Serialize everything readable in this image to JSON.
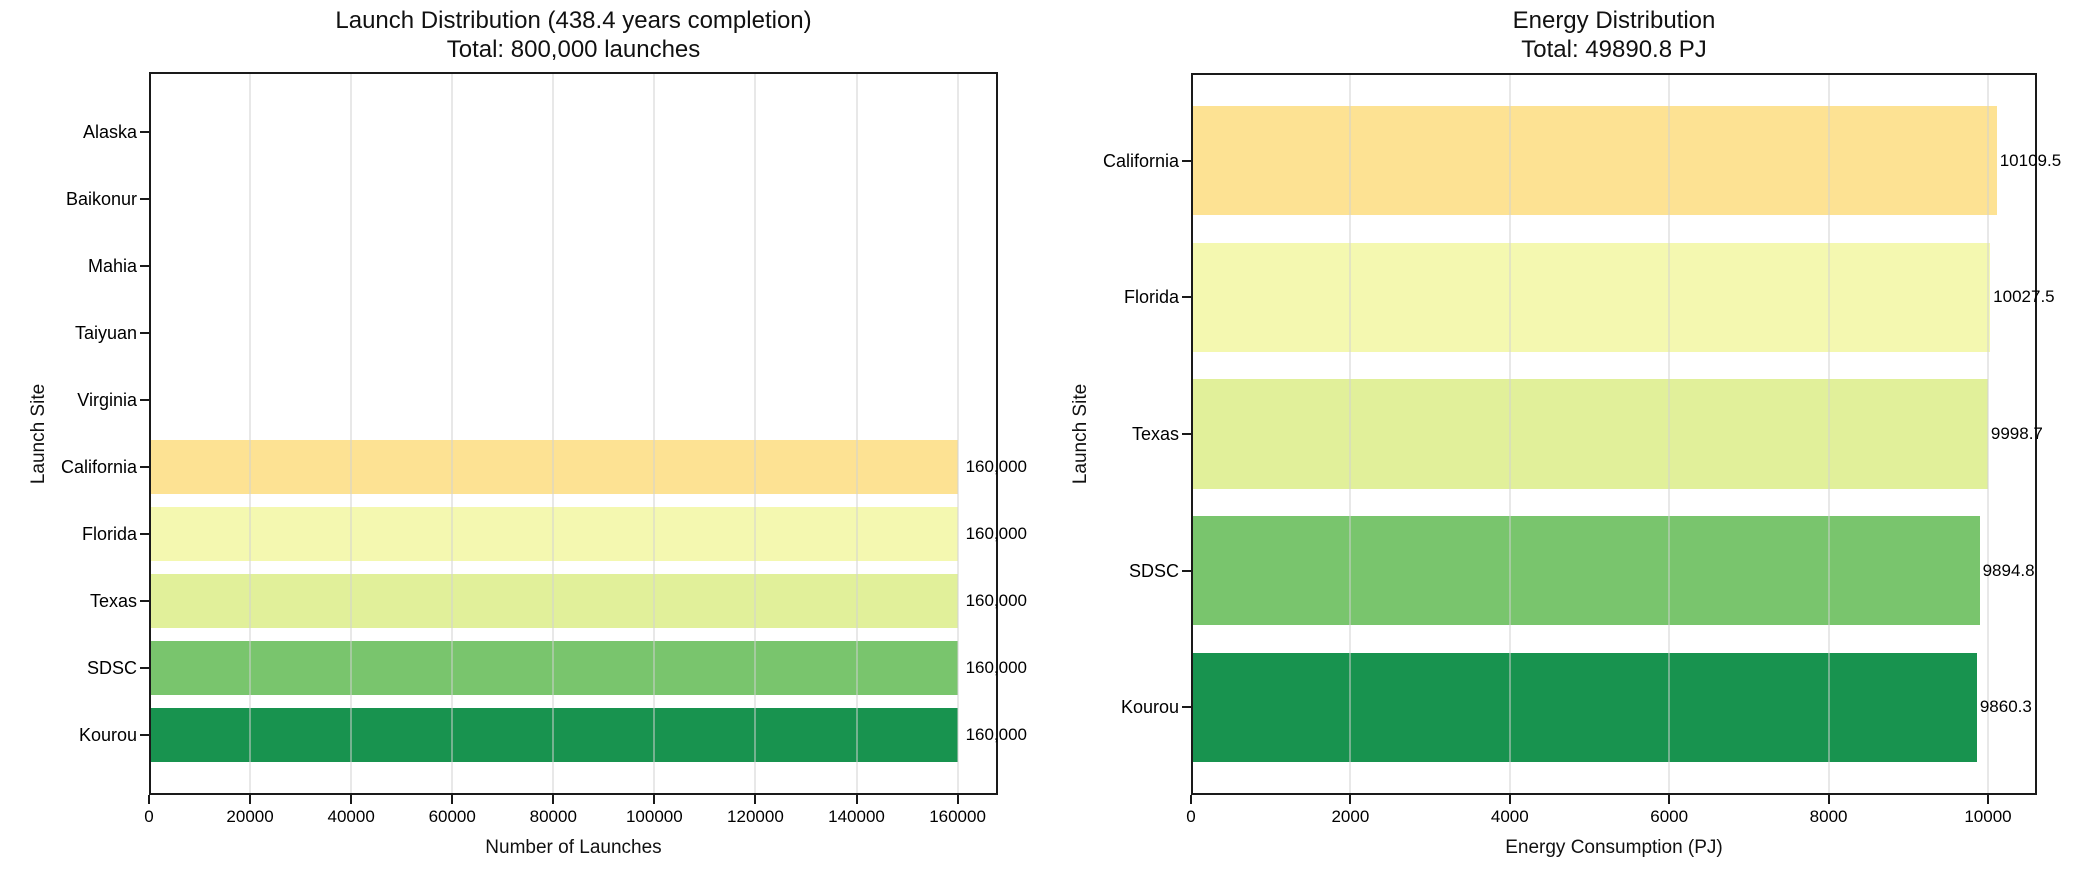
{
  "figure": {
    "background": "#ffffff"
  },
  "colors": {
    "spine": "#1a1a1a",
    "grid": "#e9e9e9",
    "text": "#000000",
    "background": "#ffffff"
  },
  "chart_data": [
    {
      "type": "bar",
      "orientation": "horizontal",
      "title": "Launch Distribution (438.4 years completion)",
      "subtitle": "Total: 800,000 launches",
      "xlabel": "Number of Launches",
      "ylabel": "Launch Site",
      "categories": [
        "Alaska",
        "Baikonur",
        "Mahia",
        "Taiyuan",
        "Virginia",
        "California",
        "Florida",
        "Texas",
        "SDSC",
        "Kourou"
      ],
      "values": [
        0,
        0,
        0,
        0,
        0,
        160000,
        160000,
        160000,
        160000,
        160000
      ],
      "value_labels": [
        "",
        "",
        "",
        "",
        "",
        "160,000",
        "160,000",
        "160,000",
        "160,000",
        "160,000"
      ],
      "bar_colors": [
        null,
        null,
        null,
        null,
        null,
        "#fde293",
        "#f4f8b0",
        "#e1f09a",
        "#79c56d",
        "#18934f"
      ],
      "xlim": [
        0,
        168000
      ],
      "xticks": [
        0,
        20000,
        40000,
        60000,
        80000,
        100000,
        120000,
        140000,
        160000
      ],
      "xtick_labels": [
        "0",
        "20000",
        "40000",
        "60000",
        "80000",
        "100000",
        "120000",
        "140000",
        "160000"
      ],
      "grid": "vertical",
      "legend": null
    },
    {
      "type": "bar",
      "orientation": "horizontal",
      "title": "Energy Distribution",
      "subtitle": "Total: 49890.8 PJ",
      "xlabel": "Energy Consumption (PJ)",
      "ylabel": "Launch Site",
      "categories": [
        "California",
        "Florida",
        "Texas",
        "SDSC",
        "Kourou"
      ],
      "values": [
        10109.5,
        10027.5,
        9998.7,
        9894.8,
        9860.3
      ],
      "value_labels": [
        "10109.5",
        "10027.5",
        "9998.7",
        "9894.8",
        "9860.3"
      ],
      "bar_colors": [
        "#fde293",
        "#f4f8b0",
        "#e1f09a",
        "#79c56d",
        "#18934f"
      ],
      "xlim": [
        0,
        10615
      ],
      "xticks": [
        0,
        2000,
        4000,
        6000,
        8000,
        10000
      ],
      "xtick_labels": [
        "0",
        "2000",
        "4000",
        "6000",
        "8000",
        "10000"
      ],
      "grid": "vertical",
      "legend": null
    }
  ]
}
